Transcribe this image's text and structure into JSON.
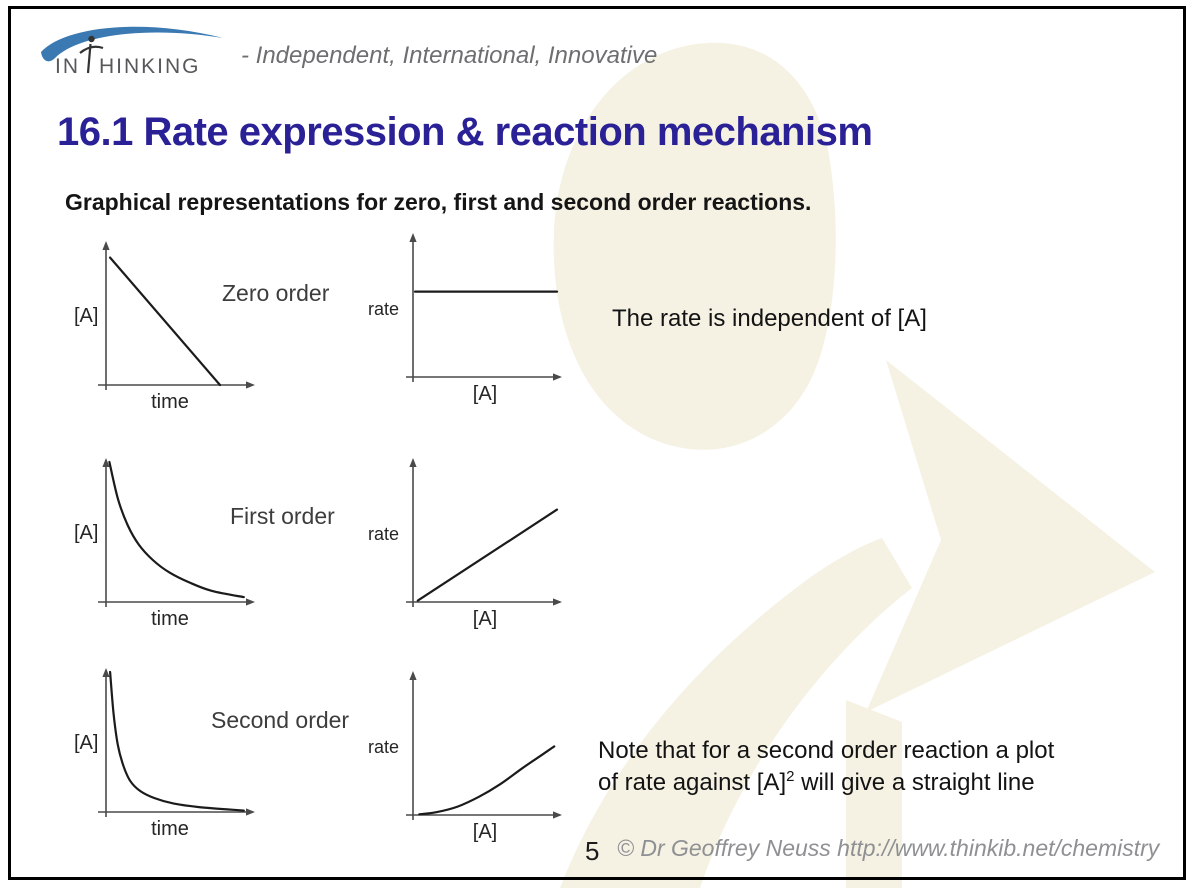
{
  "logo": {
    "brand_in": "IN",
    "brand_rest": "HINKING",
    "tagline": "- Independent, International, Innovative",
    "arc_color": "#3b79b3",
    "text_color": "#57585a"
  },
  "title": {
    "text": "16.1 Rate expression & reaction mechanism",
    "color": "#2b2196"
  },
  "subtitle": "Graphical representations for zero, first and second order reactions.",
  "annotations": {
    "zero_order_note": "The rate is independent of [A]",
    "second_order_note_line1": "Note that for a second order reaction a plot",
    "second_order_note_line2_pre": "of rate against [A]",
    "second_order_note_sup": "2",
    "second_order_note_line2_post": " will give a straight line"
  },
  "footer": {
    "page_number": "5",
    "copyright": "© Dr Geoffrey Neuss http://www.thinkib.net/chemistry"
  },
  "watermark_color": "#f5f2e4",
  "chart_data": [
    {
      "order": "zero",
      "pair": "concentration_vs_time",
      "type": "line",
      "label": "Zero order",
      "ylabel": "[A]",
      "xlabel": "time",
      "shape": "straight line decreasing to zero",
      "axes_numeric": false,
      "grid": false,
      "points": [
        [
          0.015,
          0.91
        ],
        [
          0.8,
          0.0
        ]
      ]
    },
    {
      "order": "zero",
      "pair": "rate_vs_concentration",
      "type": "line",
      "ylabel": "rate",
      "xlabel": "[A]",
      "shape": "horizontal line (rate constant)",
      "axes_numeric": false,
      "grid": false,
      "points": [
        [
          0.0,
          0.61
        ],
        [
          1.0,
          0.61
        ]
      ]
    },
    {
      "order": "first",
      "pair": "concentration_vs_time",
      "type": "line",
      "label": "First order",
      "ylabel": "[A]",
      "xlabel": "time",
      "shape": "exponential decay",
      "axes_numeric": false,
      "grid": false,
      "points": [
        [
          0.01,
          1.0
        ],
        [
          0.07,
          0.74
        ],
        [
          0.14,
          0.55
        ],
        [
          0.22,
          0.41
        ],
        [
          0.32,
          0.3
        ],
        [
          0.44,
          0.21
        ],
        [
          0.58,
          0.14
        ],
        [
          0.74,
          0.08
        ],
        [
          0.97,
          0.035
        ]
      ]
    },
    {
      "order": "first",
      "pair": "rate_vs_concentration",
      "type": "line",
      "ylabel": "rate",
      "xlabel": "[A]",
      "shape": "straight line through origin, increasing",
      "axes_numeric": false,
      "grid": false,
      "points": [
        [
          0.02,
          0.01
        ],
        [
          1.0,
          0.66
        ]
      ]
    },
    {
      "order": "second",
      "pair": "concentration_vs_time",
      "type": "line",
      "label": "Second order",
      "ylabel": "[A]",
      "xlabel": "time",
      "shape": "very steep decay with long tail",
      "axes_numeric": false,
      "grid": false,
      "points": [
        [
          0.015,
          1.0
        ],
        [
          0.04,
          0.7
        ],
        [
          0.07,
          0.48
        ],
        [
          0.11,
          0.33
        ],
        [
          0.16,
          0.22
        ],
        [
          0.23,
          0.15
        ],
        [
          0.33,
          0.1
        ],
        [
          0.47,
          0.06
        ],
        [
          0.65,
          0.035
        ],
        [
          0.97,
          0.01
        ]
      ]
    },
    {
      "order": "second",
      "pair": "rate_vs_concentration",
      "type": "line",
      "ylabel": "rate",
      "xlabel": "[A]",
      "shape": "upward-curving (parabolic) from origin",
      "axes_numeric": false,
      "grid": false,
      "points": [
        [
          0.03,
          0.005
        ],
        [
          0.15,
          0.02
        ],
        [
          0.3,
          0.06
        ],
        [
          0.45,
          0.13
        ],
        [
          0.6,
          0.22
        ],
        [
          0.75,
          0.33
        ],
        [
          0.88,
          0.42
        ],
        [
          0.98,
          0.49
        ]
      ]
    }
  ]
}
